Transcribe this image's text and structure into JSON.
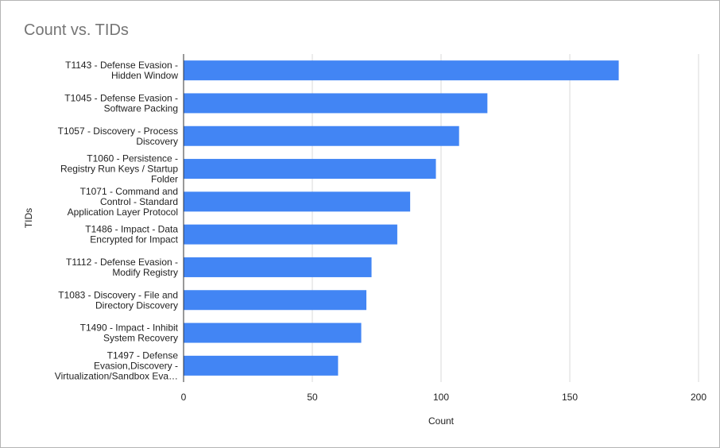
{
  "chart_data": {
    "type": "bar",
    "orientation": "horizontal",
    "title": "Count vs. TIDs",
    "xlabel": "Count",
    "ylabel": "TIDs",
    "xlim": [
      0,
      200
    ],
    "x_ticks": [
      "0",
      "50",
      "100",
      "150",
      "200"
    ],
    "grid": true,
    "legend": "none",
    "bar_color": "#4285f4",
    "categories": [
      [
        "T1143 - Defense Evasion -",
        "Hidden Window"
      ],
      [
        "T1045 - Defense Evasion -",
        "Software Packing"
      ],
      [
        "T1057 - Discovery - Process",
        "Discovery"
      ],
      [
        "T1060 - Persistence -",
        "Registry Run Keys / Startup",
        "Folder"
      ],
      [
        "T1071 - Command and",
        "Control - Standard",
        "Application Layer Protocol"
      ],
      [
        "T1486 - Impact - Data",
        "Encrypted for Impact"
      ],
      [
        "T1112 - Defense Evasion -",
        "Modify Registry"
      ],
      [
        "T1083 - Discovery - File and",
        "Directory Discovery"
      ],
      [
        "T1490 - Impact - Inhibit",
        "System Recovery"
      ],
      [
        "T1497 - Defense",
        "Evasion,Discovery -",
        "Virtualization/Sandbox Eva…"
      ]
    ],
    "values": [
      169,
      118,
      107,
      98,
      88,
      83,
      73,
      71,
      69,
      60
    ]
  }
}
